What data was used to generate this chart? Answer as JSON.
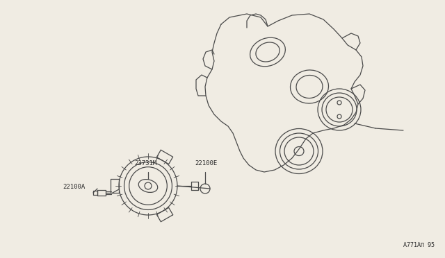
{
  "bg_color": "#f0ece3",
  "line_color": "#4a4a4a",
  "text_color": "#2a2a2a",
  "diagram_code": "A771AΠ 95",
  "labels": {
    "22100A": [
      0.135,
      0.615
    ],
    "23731M": [
      0.285,
      0.425
    ],
    "22100E": [
      0.435,
      0.425
    ]
  },
  "figsize": [
    6.4,
    3.72
  ],
  "dpi": 100
}
